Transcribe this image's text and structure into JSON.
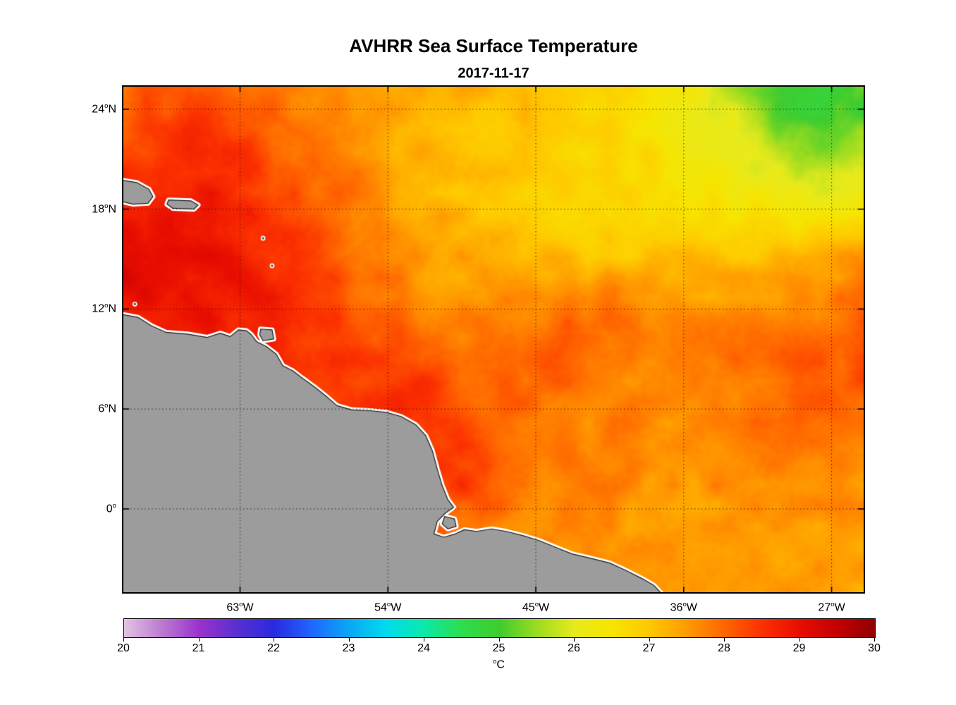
{
  "figure": {
    "title": "AVHRR Sea Surface Temperature",
    "subtitle": "2017-11-17"
  },
  "chart_data": {
    "type": "heatmap",
    "title": "AVHRR Sea Surface Temperature",
    "subtitle": "2017-11-17",
    "x_axis": {
      "range": [
        -70.1,
        -25.05
      ],
      "ticks": [
        {
          "lon": -63,
          "label": "63°W"
        },
        {
          "lon": -54,
          "label": "54°W"
        },
        {
          "lon": -45,
          "label": "45°W"
        },
        {
          "lon": -36,
          "label": "36°W"
        },
        {
          "lon": -27,
          "label": "27°W"
        }
      ]
    },
    "y_axis": {
      "range": [
        -5.0,
        25.35
      ],
      "ticks": [
        {
          "lat": 24,
          "label": "24°N"
        },
        {
          "lat": 18,
          "label": "18°N"
        },
        {
          "lat": 12,
          "label": "12°N"
        },
        {
          "lat": 6,
          "label": "6°N"
        },
        {
          "lat": 0,
          "label": "0°"
        }
      ]
    },
    "grid": {
      "style": "dotted",
      "lons": [
        -63,
        -54,
        -45,
        -36,
        -27
      ],
      "lats": [
        0,
        6,
        12,
        18,
        24
      ]
    },
    "sst_grid": {
      "units": "°C",
      "lon_west_to_east": [
        -70.1,
        -25.05
      ],
      "lat_north_to_south": [
        25.35,
        -5.0
      ],
      "values": [
        [
          28.0,
          28.1,
          28.2,
          28.0,
          27.9,
          27.8,
          27.7,
          27.6,
          27.4,
          27.3,
          27.2,
          27.1,
          27.0,
          26.9,
          26.8,
          26.7,
          26.5,
          26.2,
          25.8,
          25.3,
          24.9,
          24.8,
          25.0
        ],
        [
          28.2,
          28.3,
          28.4,
          28.3,
          28.1,
          27.9,
          27.7,
          27.5,
          27.4,
          27.2,
          27.1,
          27.0,
          27.0,
          26.9,
          26.8,
          26.7,
          26.5,
          26.3,
          26.0,
          25.6,
          25.1,
          25.0,
          25.2
        ],
        [
          28.3,
          28.5,
          28.6,
          28.5,
          28.3,
          28.0,
          27.8,
          27.6,
          27.4,
          27.2,
          27.1,
          27.0,
          26.9,
          26.9,
          26.8,
          26.7,
          26.6,
          26.4,
          26.2,
          25.9,
          25.6,
          25.5,
          25.7
        ],
        [
          28.5,
          28.7,
          28.8,
          28.7,
          28.4,
          28.1,
          27.9,
          27.7,
          27.5,
          27.3,
          27.1,
          27.0,
          26.9,
          26.8,
          26.8,
          26.7,
          26.6,
          26.5,
          26.4,
          26.2,
          26.0,
          26.0,
          26.1
        ],
        [
          28.9,
          29.0,
          29.0,
          28.8,
          28.6,
          28.3,
          28.0,
          27.8,
          27.6,
          27.4,
          27.2,
          27.1,
          27.0,
          26.9,
          26.9,
          26.8,
          26.8,
          26.8,
          26.7,
          26.6,
          26.6,
          26.7,
          26.9
        ],
        [
          29.1,
          29.1,
          29.0,
          28.9,
          28.7,
          28.5,
          28.2,
          27.9,
          27.7,
          27.5,
          27.4,
          27.3,
          27.2,
          27.1,
          27.0,
          27.0,
          27.0,
          27.1,
          27.1,
          27.0,
          27.1,
          27.3,
          27.5
        ],
        [
          29.1,
          29.0,
          29.0,
          28.9,
          28.8,
          28.6,
          28.3,
          28.0,
          27.8,
          27.6,
          27.5,
          27.5,
          27.5,
          27.4,
          27.6,
          27.7,
          27.5,
          27.4,
          27.4,
          27.4,
          27.5,
          27.7,
          27.9
        ],
        [
          28.8,
          28.9,
          28.9,
          28.8,
          28.7,
          28.6,
          28.4,
          28.2,
          28.0,
          27.8,
          27.7,
          27.7,
          27.8,
          27.9,
          28.0,
          27.8,
          27.6,
          27.6,
          27.6,
          27.7,
          27.8,
          27.9,
          28.1
        ],
        [
          28.5,
          28.5,
          28.6,
          28.6,
          28.6,
          28.5,
          28.4,
          28.3,
          28.2,
          28.0,
          27.9,
          27.9,
          28.0,
          28.1,
          27.9,
          27.8,
          27.7,
          27.7,
          27.8,
          27.9,
          28.0,
          28.1,
          28.2
        ],
        [
          28.3,
          28.3,
          28.4,
          28.4,
          28.5,
          28.5,
          28.4,
          28.4,
          28.4,
          28.5,
          28.1,
          27.9,
          28.0,
          27.9,
          27.8,
          27.7,
          27.7,
          27.7,
          27.8,
          27.9,
          28.0,
          28.1,
          28.1
        ],
        [
          28.2,
          28.2,
          28.2,
          28.3,
          28.3,
          28.4,
          28.4,
          28.6,
          28.5,
          28.6,
          28.3,
          28.0,
          27.9,
          27.8,
          27.7,
          27.7,
          27.6,
          27.7,
          27.8,
          27.9,
          28.0,
          28.0,
          27.9
        ],
        [
          28.1,
          28.1,
          28.1,
          28.2,
          28.2,
          28.3,
          28.5,
          28.7,
          28.6,
          28.5,
          28.4,
          28.1,
          27.9,
          27.8,
          27.7,
          27.6,
          27.6,
          27.6,
          27.7,
          27.8,
          27.8,
          27.8,
          27.7
        ],
        [
          28.0,
          28.0,
          28.0,
          28.1,
          28.1,
          28.2,
          28.4,
          28.6,
          28.4,
          28.3,
          28.4,
          28.0,
          27.8,
          27.7,
          27.7,
          27.6,
          27.5,
          27.5,
          27.6,
          27.6,
          27.7,
          27.6,
          27.6
        ],
        [
          27.9,
          27.9,
          27.9,
          28.0,
          28.0,
          28.1,
          28.2,
          28.3,
          28.2,
          28.1,
          27.9,
          27.8,
          27.7,
          27.7,
          27.6,
          27.5,
          27.5,
          27.4,
          27.5,
          27.5,
          27.6,
          27.5,
          27.5
        ],
        [
          27.8,
          27.8,
          27.8,
          27.9,
          27.9,
          28.0,
          28.0,
          28.1,
          28.1,
          28.0,
          27.9,
          27.8,
          27.7,
          27.6,
          27.6,
          27.5,
          27.4,
          27.4,
          27.4,
          27.5,
          27.5,
          27.5,
          27.4
        ],
        [
          27.7,
          27.7,
          27.7,
          27.8,
          27.8,
          27.9,
          27.9,
          28.0,
          28.0,
          27.9,
          27.8,
          27.8,
          27.7,
          27.6,
          27.5,
          27.5,
          27.4,
          27.4,
          27.4,
          27.4,
          27.5,
          27.4,
          27.4
        ]
      ]
    },
    "colorbar": {
      "min": 20,
      "max": 30,
      "unit": "°C",
      "ticks": [
        20,
        21,
        22,
        23,
        24,
        25,
        26,
        27,
        28,
        29,
        30
      ],
      "stops": [
        [
          0.0,
          "#e2c3e2"
        ],
        [
          0.05,
          "#bb7bd0"
        ],
        [
          0.1,
          "#9a32cc"
        ],
        [
          0.15,
          "#5a2fd0"
        ],
        [
          0.2,
          "#2a2ae0"
        ],
        [
          0.25,
          "#1f66ff"
        ],
        [
          0.3,
          "#09a8f5"
        ],
        [
          0.35,
          "#00dcec"
        ],
        [
          0.4,
          "#0ce9a8"
        ],
        [
          0.45,
          "#2ddd4d"
        ],
        [
          0.5,
          "#3ecc2e"
        ],
        [
          0.55,
          "#9cdc20"
        ],
        [
          0.6,
          "#e8ea1c"
        ],
        [
          0.65,
          "#f7e400"
        ],
        [
          0.7,
          "#ffc800"
        ],
        [
          0.75,
          "#ff9a00"
        ],
        [
          0.8,
          "#ff6400"
        ],
        [
          0.85,
          "#fb3000"
        ],
        [
          0.9,
          "#e80d00"
        ],
        [
          0.95,
          "#c40000"
        ],
        [
          1.0,
          "#900000"
        ]
      ]
    },
    "land": {
      "fill": "#9c9c9c",
      "coast_halo": "#ffffff",
      "outline": "#1a1a1a",
      "mainland": [
        [
          -70.6,
          11.75
        ],
        [
          -69.2,
          11.5
        ],
        [
          -68.4,
          11.0
        ],
        [
          -67.5,
          10.6
        ],
        [
          -66.2,
          10.5
        ],
        [
          -65.0,
          10.3
        ],
        [
          -64.2,
          10.55
        ],
        [
          -63.6,
          10.35
        ],
        [
          -63.1,
          10.75
        ],
        [
          -62.6,
          10.7
        ],
        [
          -62.3,
          10.45
        ],
        [
          -62.0,
          10.05
        ],
        [
          -61.4,
          9.75
        ],
        [
          -60.8,
          9.3
        ],
        [
          -60.4,
          8.6
        ],
        [
          -59.8,
          8.3
        ],
        [
          -59.2,
          7.85
        ],
        [
          -58.5,
          7.35
        ],
        [
          -57.8,
          6.8
        ],
        [
          -57.1,
          6.2
        ],
        [
          -56.2,
          5.95
        ],
        [
          -55.1,
          5.9
        ],
        [
          -54.1,
          5.8
        ],
        [
          -53.2,
          5.55
        ],
        [
          -52.3,
          5.05
        ],
        [
          -51.7,
          4.4
        ],
        [
          -51.3,
          3.5
        ],
        [
          -51.0,
          2.4
        ],
        [
          -50.7,
          1.4
        ],
        [
          -50.35,
          0.55
        ],
        [
          -50.0,
          0.1
        ],
        [
          -50.5,
          -0.25
        ],
        [
          -51.0,
          -0.75
        ],
        [
          -51.2,
          -1.5
        ],
        [
          -50.6,
          -1.7
        ],
        [
          -49.9,
          -1.5
        ],
        [
          -49.35,
          -1.25
        ],
        [
          -48.6,
          -1.35
        ],
        [
          -47.7,
          -1.2
        ],
        [
          -46.8,
          -1.35
        ],
        [
          -45.8,
          -1.6
        ],
        [
          -44.8,
          -1.9
        ],
        [
          -43.8,
          -2.3
        ],
        [
          -42.8,
          -2.7
        ],
        [
          -41.7,
          -2.95
        ],
        [
          -40.5,
          -3.25
        ],
        [
          -39.5,
          -3.7
        ],
        [
          -38.5,
          -4.2
        ],
        [
          -37.8,
          -4.6
        ],
        [
          -37.1,
          -5.35
        ],
        [
          -70.6,
          -5.35
        ]
      ],
      "islands": [
        [
          [
            -70.6,
            19.8
          ],
          [
            -69.3,
            19.6
          ],
          [
            -68.55,
            19.2
          ],
          [
            -68.3,
            18.75
          ],
          [
            -68.6,
            18.35
          ],
          [
            -69.5,
            18.3
          ],
          [
            -70.6,
            18.55
          ]
        ],
        [
          [
            -67.35,
            18.55
          ],
          [
            -66.0,
            18.5
          ],
          [
            -65.55,
            18.25
          ],
          [
            -65.8,
            18.0
          ],
          [
            -67.1,
            18.05
          ],
          [
            -67.45,
            18.3
          ]
        ],
        [
          [
            -61.75,
            10.8
          ],
          [
            -61.05,
            10.75
          ],
          [
            -60.95,
            10.2
          ],
          [
            -61.6,
            10.1
          ],
          [
            -61.8,
            10.45
          ]
        ],
        [
          [
            -50.55,
            -0.45
          ],
          [
            -49.95,
            -0.6
          ],
          [
            -49.85,
            -1.05
          ],
          [
            -50.35,
            -1.2
          ],
          [
            -50.7,
            -0.9
          ]
        ]
      ],
      "minor_islands": [
        [
          -61.6,
          16.25
        ],
        [
          -61.05,
          14.6
        ],
        [
          -69.4,
          12.3
        ]
      ]
    }
  }
}
